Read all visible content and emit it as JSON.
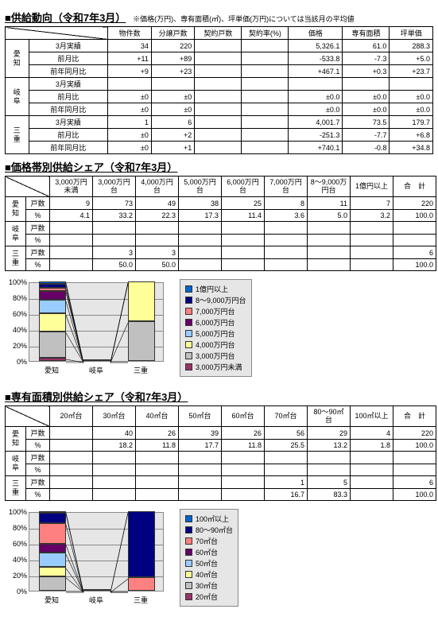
{
  "section1": {
    "title": "■供給動向（令和7年3月）",
    "note": "※価格(万円)、専有面積(㎡)、坪単価(万円)については当該月の平均値",
    "headers": [
      "物件数",
      "分譲戸数",
      "契約戸数",
      "契約率(%)",
      "価格",
      "専有面積",
      "坪単価"
    ],
    "groups": [
      {
        "pref": "愛知",
        "rows": [
          {
            "label": "3月実績",
            "cells": [
              "34",
              "220",
              "",
              "",
              "5,326.1",
              "61.0",
              "288.3"
            ]
          },
          {
            "label": "前月比",
            "cells": [
              "+11",
              "+89",
              "",
              "",
              "-533.8",
              "-7.3",
              "+5.0"
            ]
          },
          {
            "label": "前年同月比",
            "cells": [
              "+9",
              "+23",
              "",
              "",
              "+467.1",
              "+0.3",
              "+23.7"
            ]
          }
        ]
      },
      {
        "pref": "岐阜",
        "rows": [
          {
            "label": "3月実績",
            "cells": [
              "",
              "",
              "",
              "",
              "",
              "",
              ""
            ]
          },
          {
            "label": "前月比",
            "cells": [
              "±0",
              "±0",
              "",
              "",
              "±0.0",
              "±0.0",
              "±0.0"
            ]
          },
          {
            "label": "前年同月比",
            "cells": [
              "±0",
              "±0",
              "",
              "",
              "±0.0",
              "±0.0",
              "±0.0"
            ]
          }
        ]
      },
      {
        "pref": "三重",
        "rows": [
          {
            "label": "3月実績",
            "cells": [
              "1",
              "6",
              "",
              "",
              "4,001.7",
              "73.5",
              "179.7"
            ]
          },
          {
            "label": "前月比",
            "cells": [
              "±0",
              "+2",
              "",
              "",
              "-251.3",
              "-7.7",
              "+6.8"
            ]
          },
          {
            "label": "前年同月比",
            "cells": [
              "±0",
              "+1",
              "",
              "",
              "+740.1",
              "-0.8",
              "+34.8"
            ]
          }
        ]
      }
    ]
  },
  "section2": {
    "title": "■価格帯別供給シェア（令和7年3月）",
    "headers": [
      "3,000万円未満",
      "3,000万円台",
      "4,000万円台",
      "5,000万円台",
      "6,000万円台",
      "7,000万円台",
      "8～9,000万円台",
      "1億円以上",
      "合　計"
    ],
    "groups": [
      {
        "pref": "愛知",
        "rows": [
          {
            "label": "戸数",
            "cells": [
              "9",
              "73",
              "49",
              "38",
              "25",
              "8",
              "11",
              "7",
              "220"
            ]
          },
          {
            "label": "%",
            "cells": [
              "4.1",
              "33.2",
              "22.3",
              "17.3",
              "11.4",
              "3.6",
              "5.0",
              "3.2",
              "100.0"
            ]
          }
        ]
      },
      {
        "pref": "岐阜",
        "rows": [
          {
            "label": "戸数",
            "cells": [
              "",
              "",
              "",
              "",
              "",
              "",
              "",
              "",
              ""
            ]
          },
          {
            "label": "%",
            "cells": [
              "",
              "",
              "",
              "",
              "",
              "",
              "",
              "",
              ""
            ]
          }
        ]
      },
      {
        "pref": "三重",
        "rows": [
          {
            "label": "戸数",
            "cells": [
              "",
              "3",
              "3",
              "",
              "",
              "",
              "",
              "",
              "6"
            ]
          },
          {
            "label": "%",
            "cells": [
              "",
              "50.0",
              "50.0",
              "",
              "",
              "",
              "",
              "",
              "100.0"
            ]
          }
        ]
      }
    ]
  },
  "section3": {
    "title": "■専有面積別供給シェア（令和7年3月）",
    "headers": [
      "20㎡台",
      "30㎡台",
      "40㎡台",
      "50㎡台",
      "60㎡台",
      "70㎡台",
      "80～90㎡台",
      "100㎡以上",
      "合　計"
    ],
    "groups": [
      {
        "pref": "愛知",
        "rows": [
          {
            "label": "戸数",
            "cells": [
              "",
              "40",
              "26",
              "39",
              "26",
              "56",
              "29",
              "4",
              "220"
            ]
          },
          {
            "label": "%",
            "cells": [
              "",
              "18.2",
              "11.8",
              "17.7",
              "11.8",
              "25.5",
              "13.2",
              "1.8",
              "100.0"
            ]
          }
        ]
      },
      {
        "pref": "岐阜",
        "rows": [
          {
            "label": "戸数",
            "cells": [
              "",
              "",
              "",
              "",
              "",
              "",
              "",
              "",
              ""
            ]
          },
          {
            "label": "%",
            "cells": [
              "",
              "",
              "",
              "",
              "",
              "",
              "",
              "",
              ""
            ]
          }
        ]
      },
      {
        "pref": "三重",
        "rows": [
          {
            "label": "戸数",
            "cells": [
              "",
              "",
              "",
              "",
              "",
              "1",
              "5",
              "",
              "6"
            ]
          },
          {
            "label": "%",
            "cells": [
              "",
              "",
              "",
              "",
              "",
              "16.7",
              "83.3",
              "",
              "100.0"
            ]
          }
        ]
      }
    ]
  },
  "chart1": {
    "yticks": [
      "0%",
      "20%",
      "40%",
      "60%",
      "80%",
      "100%"
    ],
    "categories": [
      "愛知",
      "岐阜",
      "三重"
    ],
    "colors": [
      "#993366",
      "#c0c0c0",
      "#ffff99",
      "#99ccff",
      "#660066",
      "#ff8080",
      "#000080",
      "#0066cc"
    ],
    "legend": [
      "1億円以上",
      "8～9,000万円台",
      "7,000万円台",
      "6,000万円台",
      "5,000万円台",
      "4,000万円台",
      "3,000万円台",
      "3,000万円未満"
    ],
    "series": [
      [
        4.1,
        33.2,
        22.3,
        17.3,
        11.4,
        3.6,
        5.0,
        3.2
      ],
      [
        0,
        0,
        0,
        0,
        0,
        0,
        0,
        0
      ],
      [
        0,
        50.0,
        50.0,
        0,
        0,
        0,
        0,
        0
      ]
    ]
  },
  "chart2": {
    "yticks": [
      "0%",
      "20%",
      "40%",
      "60%",
      "80%",
      "100%"
    ],
    "categories": [
      "愛知",
      "岐阜",
      "三重"
    ],
    "colors": [
      "#993366",
      "#c0c0c0",
      "#ffff99",
      "#99ccff",
      "#660066",
      "#ff8080",
      "#000080",
      "#0066cc"
    ],
    "legend": [
      "100㎡以上",
      "80～90㎡台",
      "70㎡台",
      "60㎡台",
      "50㎡台",
      "40㎡台",
      "30㎡台",
      "20㎡台"
    ],
    "series": [
      [
        0,
        18.2,
        11.8,
        17.7,
        11.8,
        25.5,
        13.2,
        1.8
      ],
      [
        0,
        0,
        0,
        0,
        0,
        0,
        0,
        0
      ],
      [
        0,
        0,
        0,
        0,
        0,
        16.7,
        83.3,
        0
      ]
    ]
  }
}
